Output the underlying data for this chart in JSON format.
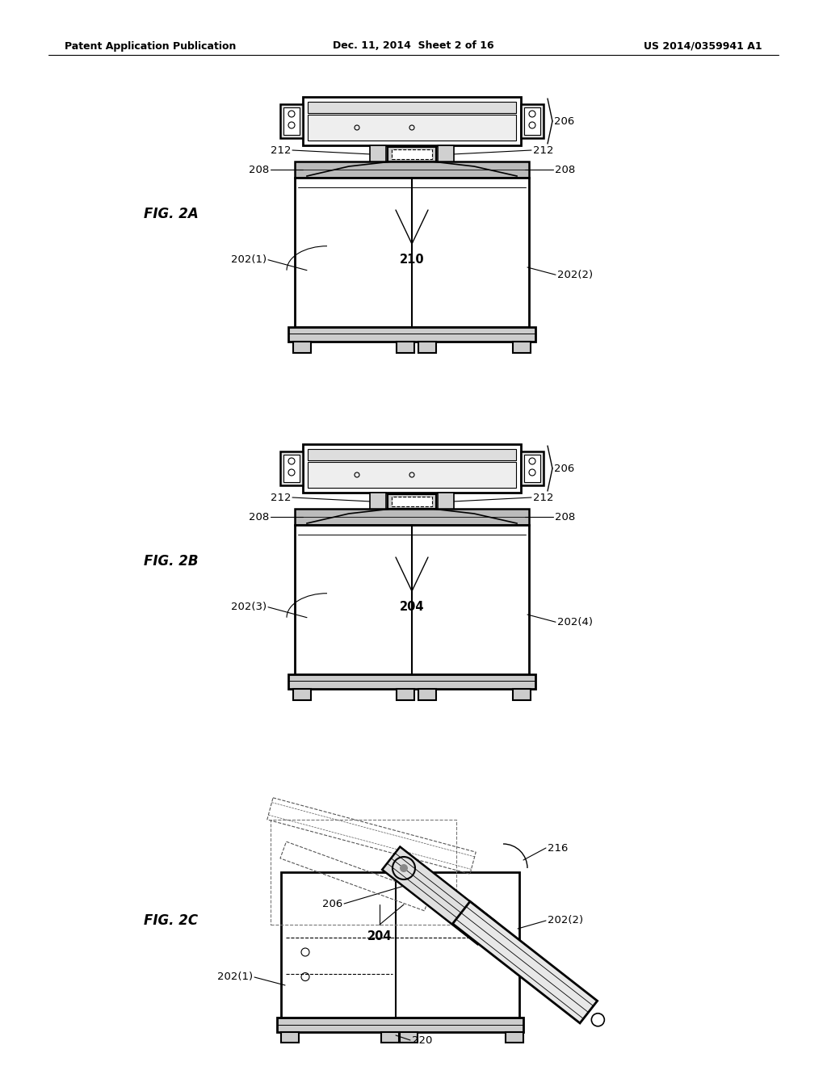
{
  "bg_color": "#ffffff",
  "line_color": "#000000",
  "header_left": "Patent Application Publication",
  "header_center": "Dec. 11, 2014  Sheet 2 of 16",
  "header_right": "US 2014/0359941 A1",
  "fig2a_label": "FIG. 2A",
  "fig2b_label": "FIG. 2B",
  "fig2c_label": "FIG. 2C",
  "lfs": 9.5
}
